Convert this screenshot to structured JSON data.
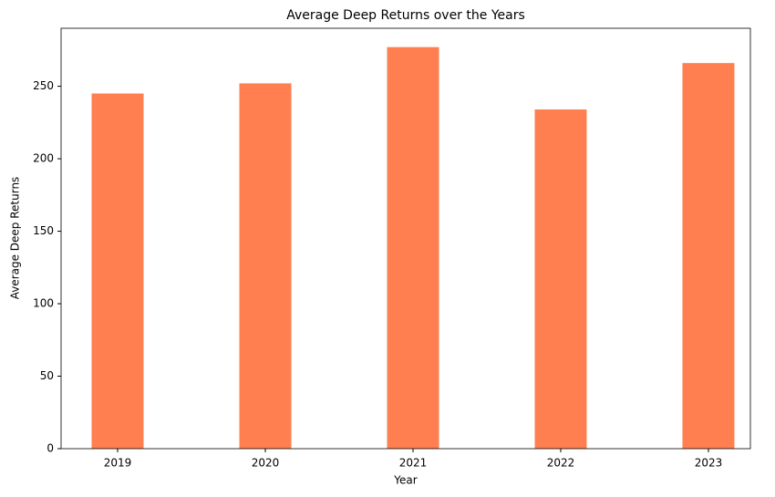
{
  "chart_data": {
    "type": "bar",
    "title": "Average Deep Returns over the Years",
    "x_label": "Year",
    "y_label": "Average Deep Returns",
    "categories": [
      "2019",
      "2020",
      "2021",
      "2022",
      "2023"
    ],
    "values": [
      245,
      252,
      277,
      234,
      266
    ],
    "color": "#ff7f50",
    "ylim": [
      0,
      290
    ],
    "yticks": [
      0,
      50,
      100,
      150,
      200,
      250
    ],
    "grid": false
  }
}
